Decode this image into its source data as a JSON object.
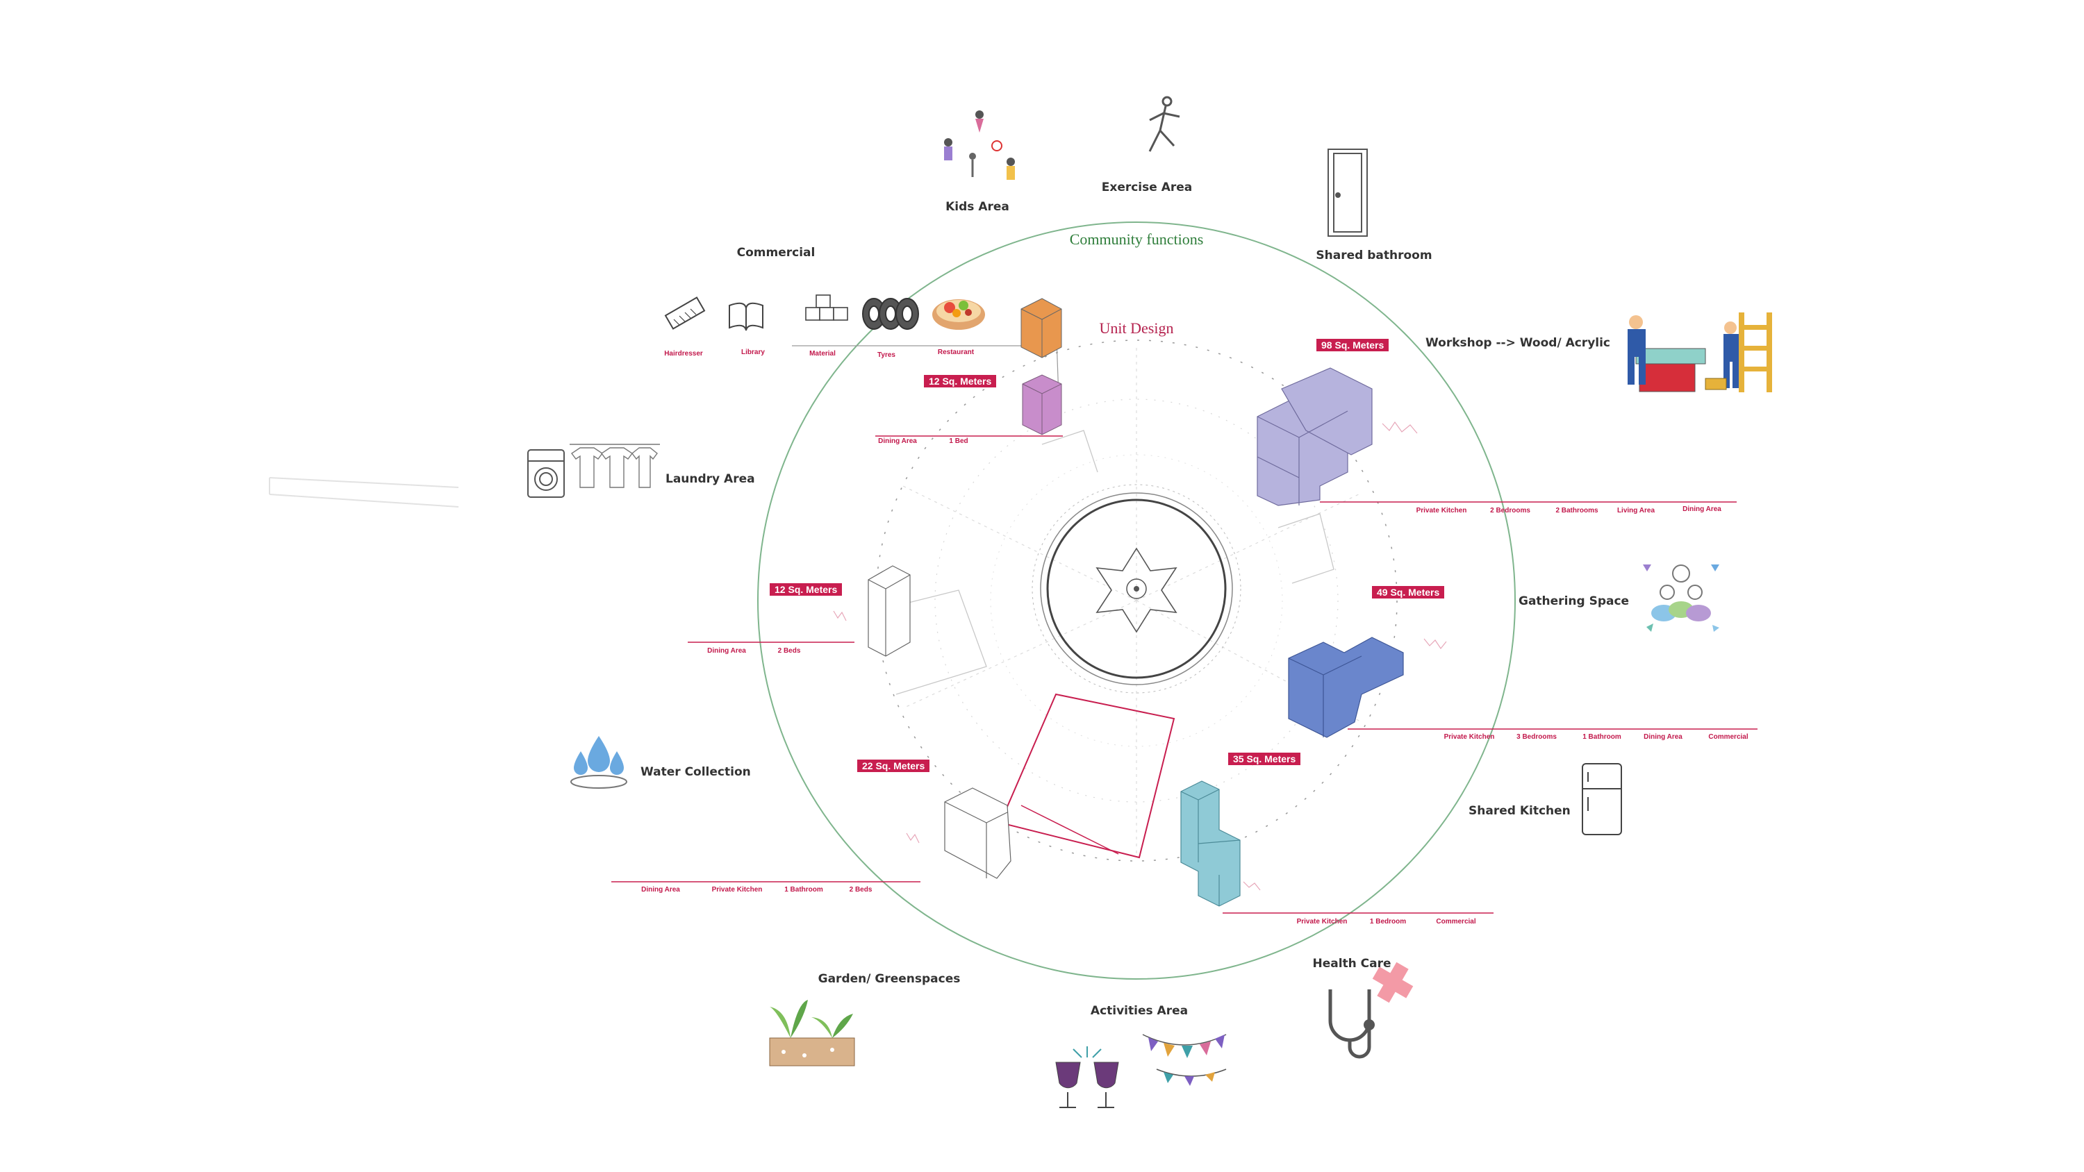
{
  "diagram": {
    "ring_title": "Community functions",
    "ring_color": "#2e8b3e",
    "unit_design_title": "Unit Design",
    "unit_design_color": "#b5234f",
    "accent": "#c81e4f"
  },
  "community": {
    "kids": "Kids Area",
    "exercise": "Exercise Area",
    "bathroom": "Shared bathroom",
    "commercial": "Commercial",
    "commercial_items": [
      "Hairdresser",
      "Library",
      "Material",
      "Tyres",
      "Restaurant"
    ],
    "workshop": "Workshop --> Wood/ Acrylic",
    "laundry": "Laundry Area",
    "gathering": "Gathering Space",
    "water": "Water Collection",
    "kitchen": "Shared Kitchen",
    "health": "Health Care",
    "garden": "Garden/ Greenspaces",
    "activities": "Activities Area"
  },
  "units": {
    "u12a": {
      "area": "12 Sq. Meters",
      "color": "#c890c9",
      "rooms": [
        "Dining Area",
        "1 Bed"
      ]
    },
    "u98": {
      "area": "98 Sq. Meters",
      "color": "#b6b3dd",
      "rooms": [
        "Private Kitchen",
        "2 Bedrooms",
        "2 Bathrooms",
        "Living Area",
        "Dining Area"
      ]
    },
    "u12b": {
      "area": "12 Sq. Meters",
      "color": "#ffffff",
      "rooms": [
        "Dining Area",
        "2 Beds"
      ]
    },
    "u49": {
      "area": "49 Sq. Meters",
      "color": "#6a86cc",
      "rooms": [
        "Private Kitchen",
        "3 Bedrooms",
        "1 Bathroom",
        "Dining Area",
        "Commercial"
      ]
    },
    "u22": {
      "area": "22 Sq. Meters",
      "color": "#ffffff",
      "rooms": [
        "Dining Area",
        "Private Kitchen",
        "1 Bathroom",
        "2 Beds"
      ]
    },
    "u35": {
      "area": "35 Sq. Meters",
      "color": "#8fcad6",
      "rooms": [
        "Private Kitchen",
        "1 Bedroom",
        "Commercial"
      ]
    }
  },
  "icons": [
    "kids-icon",
    "runner-icon",
    "door-icon",
    "comb-icon",
    "book-icon",
    "boxes-icon",
    "tyres-icon",
    "food-icon",
    "carpenter-icon",
    "ladder-icon",
    "washing-machine-icon",
    "shirts-icon",
    "people-icon",
    "water-drops-icon",
    "fridge-icon",
    "stethoscope-icon",
    "plants-icon",
    "cheers-icon",
    "bunting-icon"
  ]
}
